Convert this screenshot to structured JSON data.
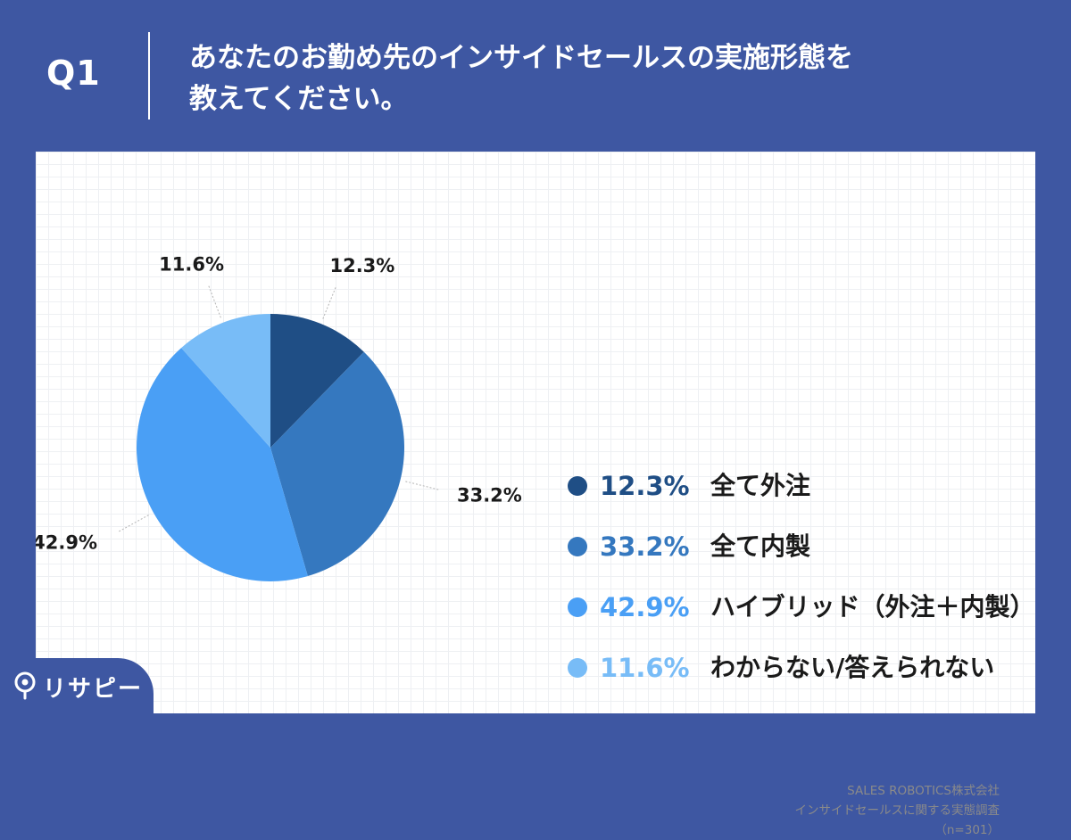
{
  "header": {
    "q_label": "Q1",
    "title_line1": "あなたのお勤め先のインサイドセールスの実施形態を",
    "title_line2": "教えてください。"
  },
  "chart_data": {
    "type": "pie",
    "categories": [
      "全て外注",
      "全て内製",
      "ハイブリッド（外注＋内製）",
      "わからない/答えられない"
    ],
    "values": [
      12.3,
      33.2,
      42.9,
      11.6
    ],
    "labels": [
      "12.3%",
      "33.2%",
      "42.9%",
      "11.6%"
    ],
    "colors": [
      "#1f4e85",
      "#3578bf",
      "#4a9ff5",
      "#78bcf7"
    ],
    "legend_position": "right"
  },
  "source": {
    "line1": "SALES ROBOTICS株式会社",
    "line2": "インサイドセールスに関する実態調査",
    "line3": "（n=301）"
  },
  "logo": {
    "text": "リサピー",
    "icon": "location-pin-icon"
  }
}
